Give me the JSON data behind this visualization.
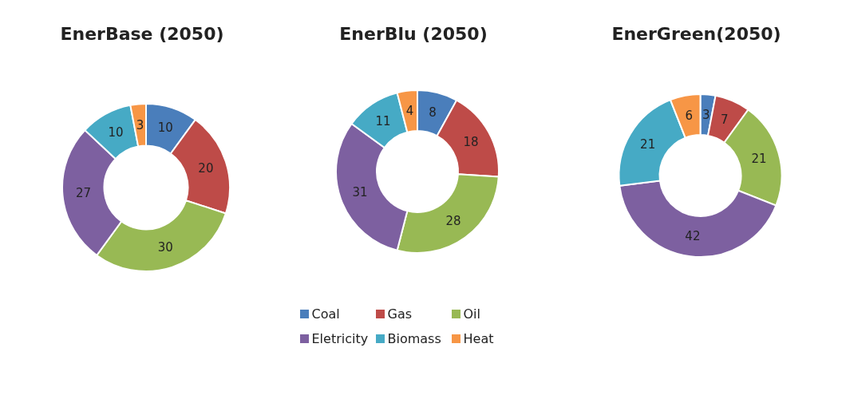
{
  "chart_data": [
    {
      "type": "donut",
      "title": "EnerBase (2050)",
      "categories": [
        null,
        null,
        null,
        null,
        null,
        null
      ],
      "values": [
        10,
        20,
        30,
        27,
        10,
        3
      ],
      "colors": [
        "#4a7ebb",
        "#be4b48",
        "#98b954",
        "#7d60a0",
        "#46aac5",
        "#f79646"
      ],
      "data_labels": true,
      "legend": false
    },
    {
      "type": "donut",
      "title": "EnerBlu (2050)",
      "categories": [
        "Coal",
        "Gas",
        "Oil",
        "Eletricity",
        "Biomass",
        "Heat"
      ],
      "values": [
        8,
        18,
        28,
        31,
        11,
        4
      ],
      "colors": [
        "#4a7ebb",
        "#be4b48",
        "#98b954",
        "#7d60a0",
        "#46aac5",
        "#f79646"
      ],
      "data_labels": true,
      "legend": "bottom"
    },
    {
      "type": "donut",
      "title": "EnerGreen(2050)",
      "categories": [
        null,
        null,
        null,
        null,
        null,
        null
      ],
      "values": [
        3,
        7,
        21,
        42,
        21,
        6
      ],
      "colors": [
        "#4a7ebb",
        "#be4b48",
        "#98b954",
        "#7d60a0",
        "#46aac5",
        "#f79646"
      ],
      "data_labels": true,
      "legend": false
    }
  ]
}
